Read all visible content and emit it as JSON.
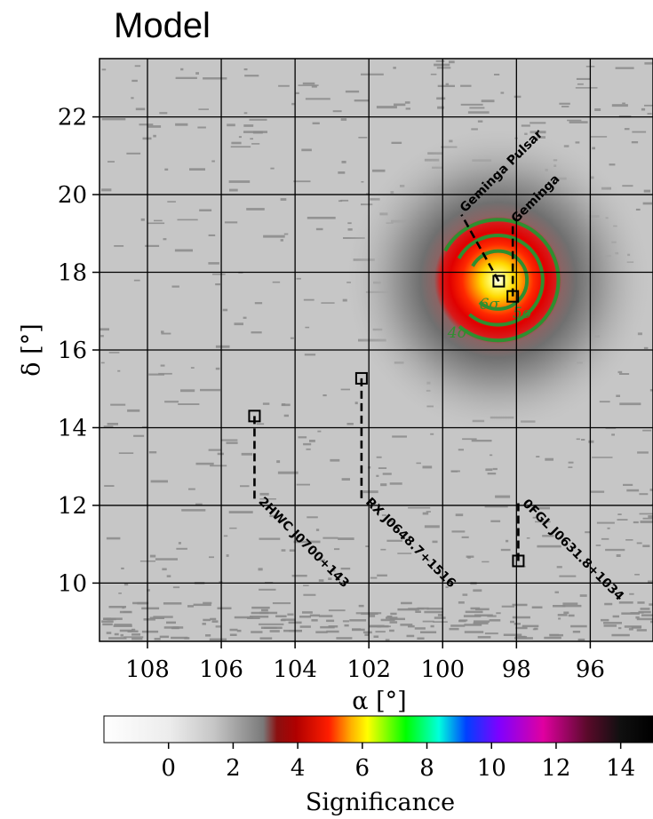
{
  "chart_data": {
    "type": "heatmap",
    "title": "Model",
    "xlabel": "α [°]",
    "ylabel": "δ [°]",
    "x_ticks": [
      "108",
      "106",
      "104",
      "102",
      "100",
      "98",
      "96"
    ],
    "y_ticks": [
      "10",
      "12",
      "14",
      "16",
      "18",
      "20",
      "22"
    ],
    "xlim": [
      109.3,
      94.3
    ],
    "ylim": [
      8.5,
      23.5
    ],
    "grid": true,
    "model_peak": {
      "ra": 98.5,
      "dec": 17.8,
      "peak_significance": 7.5
    },
    "contours": [
      {
        "label": "4σ",
        "level": 4
      },
      {
        "label": "5σ",
        "level": 5
      },
      {
        "label": "6σ",
        "level": 6
      }
    ],
    "sources": [
      {
        "name": "Geminga Pulsar",
        "ra": 98.48,
        "dec": 17.77
      },
      {
        "name": "Geminga",
        "ra": 98.1,
        "dec": 17.38
      },
      {
        "name": "2HWC J0700+143",
        "ra": 105.1,
        "dec": 14.3
      },
      {
        "name": "RX J0648.7+1516",
        "ra": 102.2,
        "dec": 15.27
      },
      {
        "name": "0FGL J0631.8+1034",
        "ra": 97.95,
        "dec": 10.57
      }
    ],
    "colorbar": {
      "label": "Significance",
      "range": [
        -2,
        15
      ],
      "ticks": [
        "0",
        "2",
        "4",
        "6",
        "8",
        "10",
        "12",
        "14"
      ],
      "tick_values": [
        0,
        2,
        4,
        6,
        8,
        10,
        12,
        14
      ]
    }
  },
  "colors": {
    "background_map": "#c6c6c6",
    "noise_marks": "#8a8a8a",
    "contours": "#2f8f2f",
    "grid": "#000000"
  }
}
